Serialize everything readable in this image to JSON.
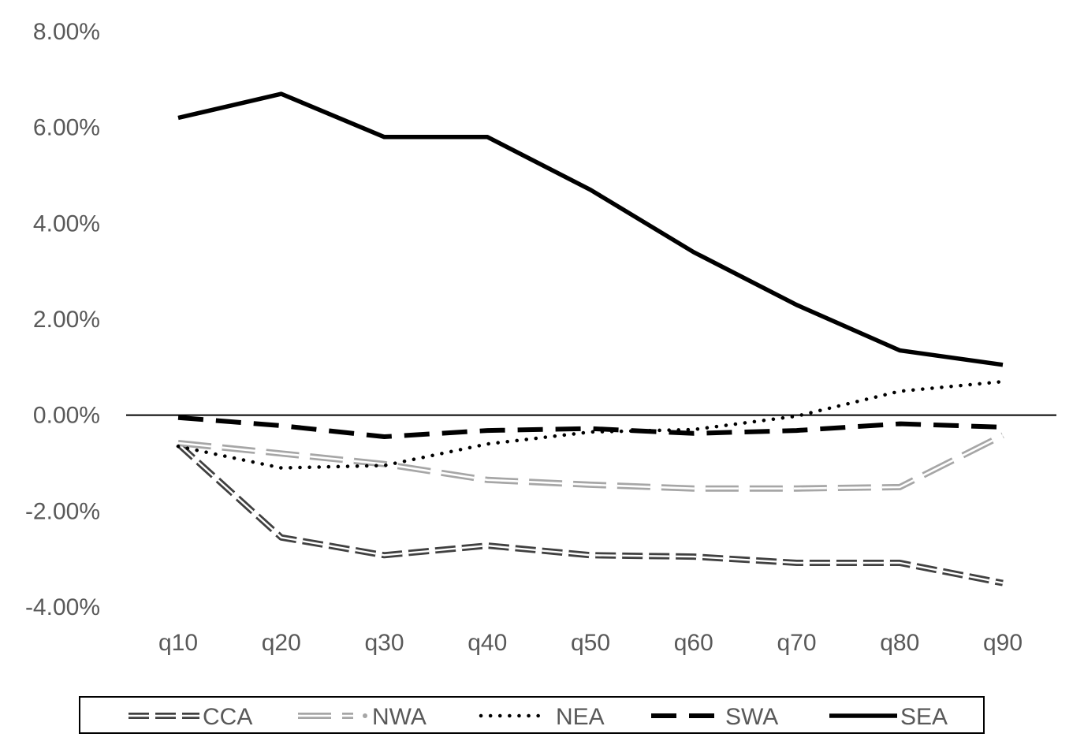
{
  "chart_data": {
    "type": "line",
    "title": "",
    "xlabel": "",
    "ylabel": "",
    "categories": [
      "q10",
      "q20",
      "q30",
      "q40",
      "q50",
      "q60",
      "q70",
      "q80",
      "q90"
    ],
    "ylim": [
      -4,
      8
    ],
    "yticks": [
      8,
      6,
      4,
      2,
      0,
      -2,
      -4
    ],
    "ytick_labels": [
      "8.00%",
      "6.00%",
      "4.00%",
      "2.00%",
      "0.00%",
      "-2.00%",
      "-4.00%"
    ],
    "grid": false,
    "legend_position": "bottom",
    "series": [
      {
        "name": "CCA",
        "style": "double-dash-dark",
        "values": [
          -0.6,
          -2.55,
          -2.92,
          -2.72,
          -2.92,
          -2.95,
          -3.08,
          -3.08,
          -3.5
        ]
      },
      {
        "name": "NWA",
        "style": "double-dash-light",
        "values": [
          -0.58,
          -0.8,
          -1.02,
          -1.35,
          -1.45,
          -1.53,
          -1.53,
          -1.5,
          -0.42
        ]
      },
      {
        "name": "NEA",
        "style": "dotted",
        "values": [
          -0.65,
          -1.1,
          -1.05,
          -0.6,
          -0.35,
          -0.3,
          -0.02,
          0.5,
          0.7
        ]
      },
      {
        "name": "SWA",
        "style": "dashed",
        "values": [
          -0.05,
          -0.22,
          -0.45,
          -0.32,
          -0.28,
          -0.38,
          -0.32,
          -0.18,
          -0.25
        ]
      },
      {
        "name": "SEA",
        "style": "solid",
        "values": [
          6.2,
          6.7,
          5.8,
          5.8,
          4.7,
          3.4,
          2.3,
          1.35,
          1.05
        ]
      }
    ],
    "colors": {
      "axis": "#000000",
      "tick_text": "#595959",
      "dark": "#404040",
      "light": "#a6a6a6",
      "black": "#000000"
    }
  }
}
